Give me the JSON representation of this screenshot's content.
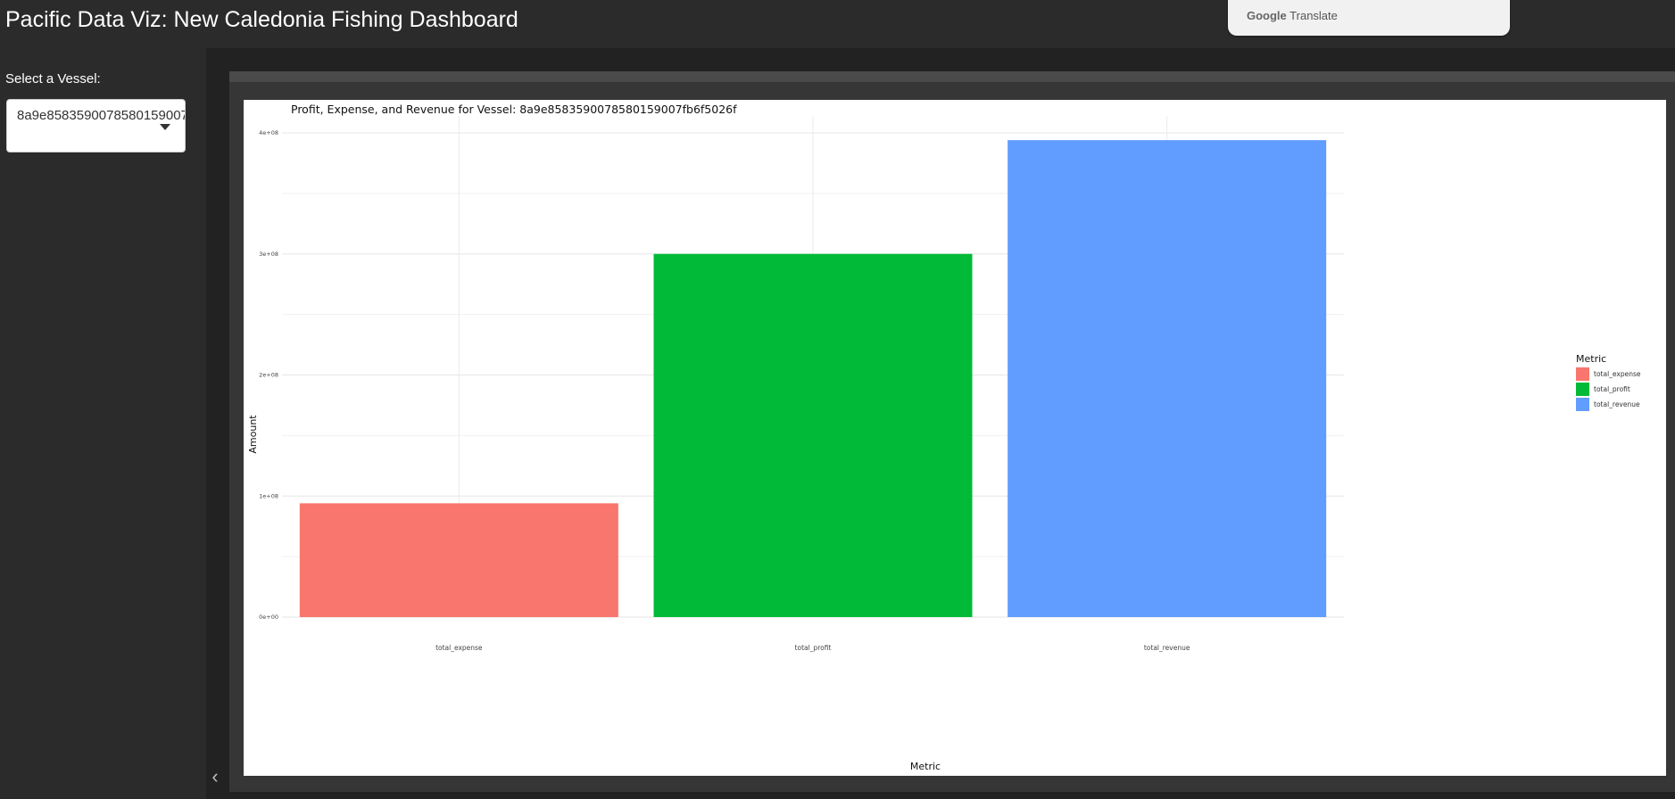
{
  "app": {
    "title": "Pacific Data Viz: New Caledonia Fishing Dashboard"
  },
  "translate": {
    "brand": "Google",
    "label": "Translate"
  },
  "sidebar": {
    "select_label": "Select a Vessel:",
    "selected_vessel": "8a9e8583590078580159007fb6f5026f",
    "collapse_icon": "chevron-left-icon"
  },
  "chart_data": {
    "type": "bar",
    "title": "Profit, Expense, and Revenue for Vessel: 8a9e8583590078580159007fb6f5026f",
    "xlabel": "Metric",
    "ylabel": "Amount",
    "categories": [
      "total_expense",
      "total_profit",
      "total_revenue"
    ],
    "values": [
      94000000,
      300000000,
      394000000
    ],
    "colors": [
      "#F8766D",
      "#00BA38",
      "#619CFF"
    ],
    "ylim": [
      0,
      400000000
    ],
    "yticks": [
      0,
      100000000,
      200000000,
      300000000,
      400000000
    ],
    "ytick_labels": [
      "0e+00",
      "1e+08",
      "2e+08",
      "3e+08",
      "4e+08"
    ],
    "grid": true,
    "legend": {
      "title": "Metric",
      "placement": "right",
      "entries": [
        "total_expense",
        "total_profit",
        "total_revenue"
      ]
    }
  }
}
